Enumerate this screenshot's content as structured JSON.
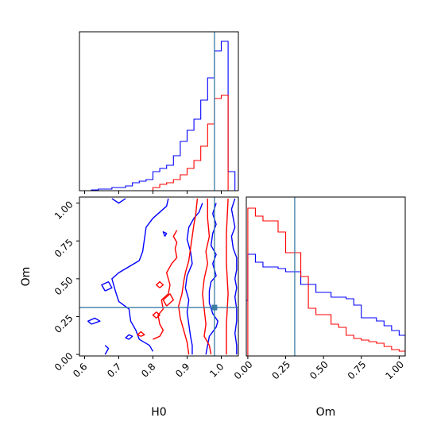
{
  "chart_data": [
    {
      "type": "histogram",
      "panel": "H0 marginal (top-left)",
      "xlabel": "",
      "ylabel": "",
      "xlim": [
        0.585,
        1.05
      ],
      "x_ticks": [
        0.6,
        0.7,
        0.8,
        0.9,
        1.0
      ],
      "x_tick_labels_shown": false,
      "y_ticks_shown": false,
      "truth_line": 0.98,
      "bin_edges": [
        0.585,
        0.6,
        0.62,
        0.64,
        0.66,
        0.68,
        0.7,
        0.72,
        0.74,
        0.76,
        0.78,
        0.8,
        0.82,
        0.84,
        0.86,
        0.88,
        0.9,
        0.92,
        0.94,
        0.96,
        0.98,
        1.0,
        1.02,
        1.04,
        1.05
      ],
      "series": [
        {
          "color": "#0000ff",
          "counts": [
            0.0,
            0.0,
            0.005,
            0.01,
            0.01,
            0.02,
            0.02,
            0.03,
            0.05,
            0.06,
            0.07,
            0.12,
            0.14,
            0.16,
            0.22,
            0.31,
            0.38,
            0.45,
            0.57,
            0.71,
            0.88,
            0.94,
            0.12,
            0.0
          ]
        },
        {
          "color": "#ff0000",
          "counts": [
            0.0,
            0.0,
            0.0,
            0.0,
            0.0,
            0.0,
            0.0,
            0.0,
            0.0,
            0.0,
            0.0,
            0.02,
            0.04,
            0.05,
            0.07,
            0.1,
            0.14,
            0.19,
            0.28,
            0.42,
            0.58,
            0.6,
            0.0,
            0.0
          ]
        }
      ]
    },
    {
      "type": "contour",
      "panel": "H0 vs Om joint (bottom-left)",
      "xlabel": "H0",
      "ylabel": "Om",
      "xlim": [
        0.585,
        1.05
      ],
      "ylim": [
        -0.01,
        1.04
      ],
      "x_ticks": [
        0.6,
        0.7,
        0.8,
        0.9,
        1.0
      ],
      "x_tick_labels": [
        "0.6",
        "0.7",
        "0.8",
        "0.9",
        "1.0"
      ],
      "y_ticks": [
        0.0,
        0.25,
        0.5,
        0.75,
        1.0
      ],
      "y_tick_labels": [
        "0.00",
        "0.25",
        "0.50",
        "0.75",
        "1.00"
      ],
      "truth": {
        "H0": 0.98,
        "Om": 0.31
      },
      "series": [
        {
          "color": "#0000ff",
          "contours": [
            [
              [
                0.945,
                1.0
              ],
              [
                0.935,
                0.94
              ],
              [
                0.92,
                0.9
              ],
              [
                0.905,
                0.84
              ],
              [
                0.9,
                0.76
              ],
              [
                0.91,
                0.68
              ],
              [
                0.915,
                0.6
              ],
              [
                0.9,
                0.52
              ],
              [
                0.895,
                0.44
              ],
              [
                0.905,
                0.36
              ],
              [
                0.9,
                0.28
              ],
              [
                0.905,
                0.2
              ],
              [
                0.91,
                0.12
              ],
              [
                0.915,
                0.06
              ],
              [
                0.915,
                0.0
              ]
            ],
            [
              [
                0.955,
                0.0
              ],
              [
                0.96,
                0.06
              ],
              [
                0.965,
                0.12
              ],
              [
                0.985,
                0.18
              ],
              [
                0.99,
                0.22
              ],
              [
                0.975,
                0.27
              ],
              [
                0.965,
                0.34
              ],
              [
                0.965,
                0.42
              ],
              [
                0.97,
                0.48
              ],
              [
                0.985,
                0.52
              ],
              [
                0.975,
                0.6
              ],
              [
                0.985,
                0.66
              ],
              [
                0.97,
                0.72
              ],
              [
                0.975,
                0.8
              ],
              [
                0.985,
                0.86
              ],
              [
                0.975,
                0.93
              ],
              [
                0.985,
                1.0
              ]
            ],
            [
              [
                1.04,
                1.03
              ],
              [
                1.03,
                0.96
              ],
              [
                1.035,
                0.9
              ],
              [
                1.04,
                0.84
              ],
              [
                1.03,
                0.78
              ],
              [
                1.035,
                0.7
              ],
              [
                1.045,
                0.64
              ],
              [
                1.045,
                0.56
              ],
              [
                1.04,
                0.5
              ],
              [
                1.045,
                0.44
              ],
              [
                1.04,
                0.38
              ],
              [
                1.045,
                0.3
              ],
              [
                1.045,
                0.22
              ],
              [
                1.04,
                0.14
              ],
              [
                1.045,
                0.06
              ],
              [
                1.045,
                0.0
              ]
            ],
            [
              [
                0.845,
                1.03
              ],
              [
                0.84,
                0.98
              ],
              [
                0.82,
                0.94
              ],
              [
                0.8,
                0.9
              ],
              [
                0.78,
                0.84
              ],
              [
                0.775,
                0.76
              ],
              [
                0.77,
                0.68
              ],
              [
                0.76,
                0.62
              ],
              [
                0.73,
                0.58
              ],
              [
                0.7,
                0.54
              ],
              [
                0.68,
                0.5
              ],
              [
                0.69,
                0.42
              ],
              [
                0.7,
                0.35
              ],
              [
                0.73,
                0.3
              ],
              [
                0.735,
                0.22
              ],
              [
                0.75,
                0.16
              ],
              [
                0.76,
                0.1
              ],
              [
                0.79,
                0.06
              ],
              [
                0.8,
                0.02
              ]
            ],
            [
              [
                0.68,
                1.03
              ],
              [
                0.7,
                1.0
              ],
              [
                0.72,
                1.03
              ]
            ],
            [
              [
                0.62,
                0.2
              ],
              [
                0.645,
                0.22
              ],
              [
                0.63,
                0.24
              ],
              [
                0.61,
                0.22
              ],
              [
                0.62,
                0.2
              ]
            ],
            [
              [
                0.66,
                0.42
              ],
              [
                0.68,
                0.44
              ],
              [
                0.67,
                0.48
              ],
              [
                0.65,
                0.46
              ],
              [
                0.66,
                0.42
              ]
            ],
            [
              [
                0.835,
                0.78
              ],
              [
                0.84,
                0.8
              ],
              [
                0.83,
                0.81
              ],
              [
                0.835,
                0.78
              ]
            ],
            [
              [
                0.73,
                0.1
              ],
              [
                0.74,
                0.12
              ],
              [
                0.73,
                0.13
              ],
              [
                0.72,
                0.11
              ],
              [
                0.73,
                0.1
              ]
            ],
            [
              [
                0.66,
                0.0
              ],
              [
                0.67,
                0.04
              ],
              [
                0.66,
                0.06
              ]
            ]
          ]
        },
        {
          "color": "#ff0000",
          "contours": [
            [
              [
                0.96,
                1.03
              ],
              [
                0.96,
                0.9
              ],
              [
                0.965,
                0.78
              ],
              [
                0.955,
                0.68
              ],
              [
                0.96,
                0.6
              ],
              [
                0.95,
                0.5
              ],
              [
                0.945,
                0.4
              ],
              [
                0.95,
                0.3
              ],
              [
                0.955,
                0.2
              ],
              [
                0.95,
                0.12
              ],
              [
                0.965,
                0.06
              ],
              [
                0.97,
                0.0
              ]
            ],
            [
              [
                1.02,
                1.03
              ],
              [
                1.015,
                0.8
              ],
              [
                1.015,
                0.6
              ],
              [
                1.02,
                0.4
              ],
              [
                1.015,
                0.2
              ],
              [
                1.015,
                0.0
              ]
            ],
            [
              [
                0.93,
                1.03
              ],
              [
                0.925,
                0.92
              ],
              [
                0.92,
                0.86
              ],
              [
                0.915,
                0.78
              ],
              [
                0.91,
                0.7
              ],
              [
                0.905,
                0.62
              ],
              [
                0.895,
                0.54
              ],
              [
                0.89,
                0.48
              ],
              [
                0.885,
                0.4
              ],
              [
                0.875,
                0.32
              ],
              [
                0.88,
                0.24
              ],
              [
                0.89,
                0.16
              ],
              [
                0.9,
                0.08
              ],
              [
                0.905,
                0.0
              ]
            ],
            [
              [
                0.8,
                0.1
              ],
              [
                0.82,
                0.12
              ],
              [
                0.83,
                0.16
              ],
              [
                0.82,
                0.2
              ],
              [
                0.815,
                0.26
              ],
              [
                0.83,
                0.3
              ],
              [
                0.825,
                0.36
              ],
              [
                0.845,
                0.4
              ],
              [
                0.85,
                0.46
              ],
              [
                0.84,
                0.54
              ],
              [
                0.855,
                0.6
              ],
              [
                0.87,
                0.64
              ],
              [
                0.865,
                0.7
              ],
              [
                0.87,
                0.74
              ],
              [
                0.86,
                0.78
              ],
              [
                0.87,
                0.82
              ]
            ],
            [
              [
                0.84,
                0.32
              ],
              [
                0.86,
                0.36
              ],
              [
                0.85,
                0.4
              ],
              [
                0.83,
                0.36
              ],
              [
                0.84,
                0.32
              ]
            ],
            [
              [
                0.82,
                0.44
              ],
              [
                0.83,
                0.46
              ],
              [
                0.82,
                0.48
              ],
              [
                0.81,
                0.46
              ],
              [
                0.82,
                0.44
              ]
            ],
            [
              [
                0.765,
                0.12
              ],
              [
                0.775,
                0.13
              ],
              [
                0.765,
                0.15
              ],
              [
                0.755,
                0.13
              ],
              [
                0.765,
                0.12
              ]
            ],
            [
              [
                0.81,
                0.24
              ],
              [
                0.82,
                0.26
              ],
              [
                0.81,
                0.28
              ],
              [
                0.8,
                0.26
              ],
              [
                0.81,
                0.24
              ]
            ]
          ]
        }
      ]
    },
    {
      "type": "histogram",
      "panel": "Om marginal (bottom-right)",
      "xlabel": "Om",
      "ylabel": "",
      "xlim": [
        -0.01,
        1.04
      ],
      "x_ticks": [
        0.0,
        0.25,
        0.5,
        0.75,
        1.0
      ],
      "x_tick_labels": [
        "0.00",
        "0.25",
        "0.50",
        "0.75",
        "1.00"
      ],
      "y_ticks_shown": false,
      "truth_line": 0.31,
      "bin_edges": [
        -0.01,
        0.0,
        0.05,
        0.1,
        0.15,
        0.2,
        0.25,
        0.3,
        0.35,
        0.4,
        0.45,
        0.5,
        0.55,
        0.6,
        0.65,
        0.7,
        0.75,
        0.8,
        0.85,
        0.9,
        0.95,
        1.0,
        1.04
      ],
      "series": [
        {
          "color": "#0000ff",
          "counts": [
            0.35,
            0.64,
            0.59,
            0.56,
            0.56,
            0.55,
            0.53,
            0.53,
            0.45,
            0.45,
            0.4,
            0.4,
            0.37,
            0.37,
            0.36,
            0.32,
            0.24,
            0.24,
            0.22,
            0.19,
            0.16,
            0.13
          ]
        },
        {
          "color": "#ff0000",
          "counts": [
            0.0,
            0.93,
            0.88,
            0.85,
            0.85,
            0.78,
            0.65,
            0.65,
            0.5,
            0.3,
            0.26,
            0.26,
            0.2,
            0.18,
            0.13,
            0.11,
            0.1,
            0.09,
            0.08,
            0.06,
            0.04,
            0.03
          ]
        }
      ]
    }
  ]
}
